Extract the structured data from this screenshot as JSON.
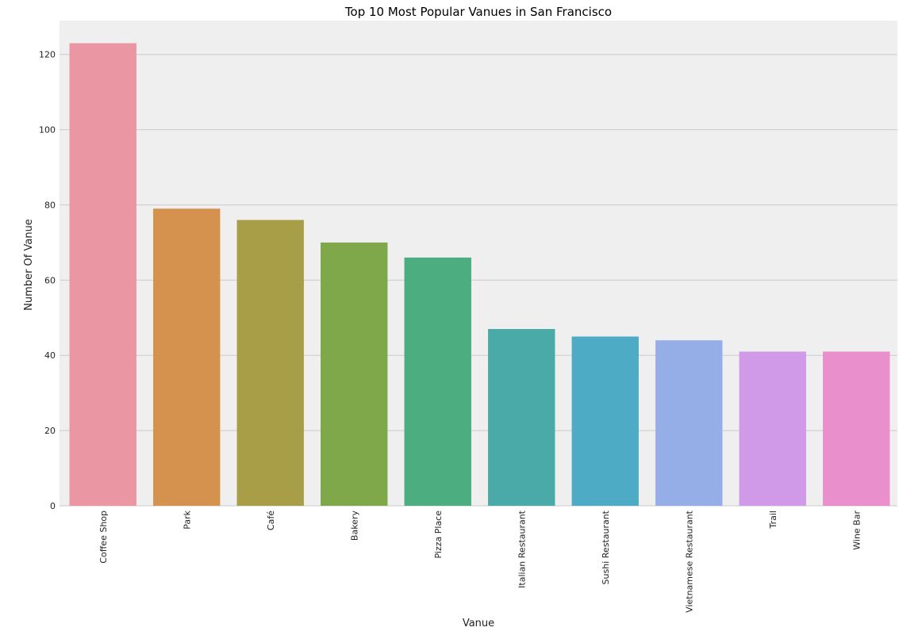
{
  "chart_data": {
    "type": "bar",
    "title": "Top 10 Most Popular Vanues in San Francisco",
    "xlabel": "Vanue",
    "ylabel": "Number Of Vanue",
    "categories": [
      "Coffee Shop",
      "Park",
      "Café",
      "Bakery",
      "Pizza Place",
      "Italian Restaurant",
      "Sushi Restaurant",
      "Vietnamese Restaurant",
      "Trail",
      "Wine Bar"
    ],
    "values": [
      123,
      79,
      76,
      70,
      66,
      47,
      45,
      44,
      41,
      41
    ],
    "colors": [
      "#ea96a3",
      "#d5924e",
      "#a89e48",
      "#7ea84a",
      "#4cad80",
      "#4aaaa7",
      "#4eabc5",
      "#95aee8",
      "#d09ae8",
      "#e88fcc"
    ],
    "ylim": [
      0,
      129
    ],
    "yticks": [
      0,
      20,
      40,
      60,
      80,
      100,
      120
    ],
    "grid": true,
    "background_color": "#efefef",
    "grid_color": "#cbcbcb"
  }
}
